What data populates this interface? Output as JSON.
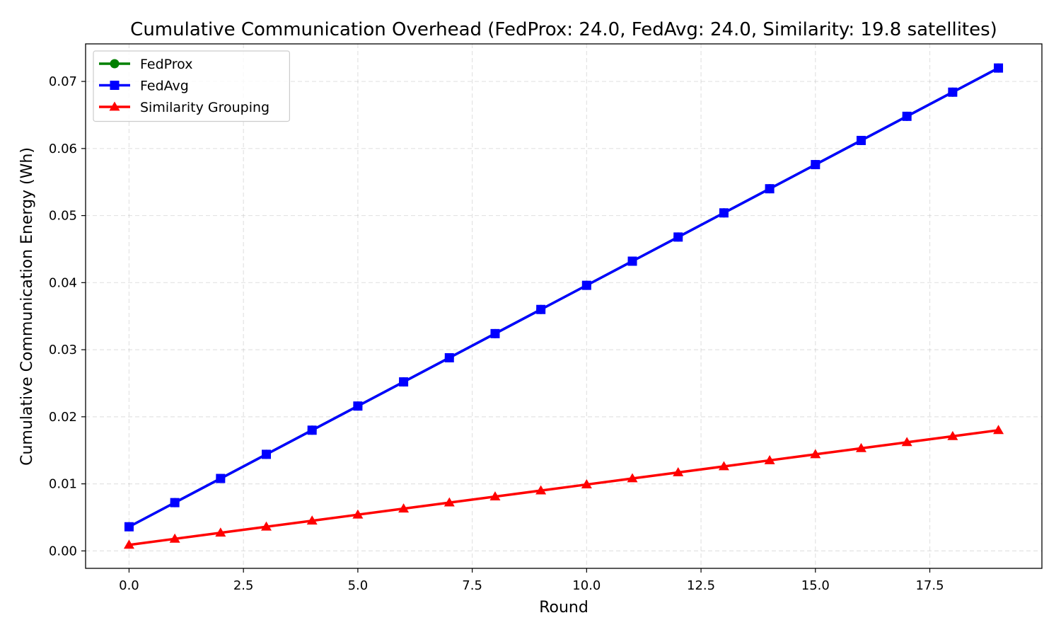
{
  "chart_data": {
    "type": "line",
    "title": "Cumulative Communication Overhead (FedProx: 24.0, FedAvg: 24.0, Similarity: 19.8 satellites)",
    "xlabel": "Round",
    "ylabel": "Cumulative Communication Energy (Wh)",
    "xlim": [
      -0.95,
      19.95
    ],
    "ylim": [
      -0.0026,
      0.0756
    ],
    "xticks": [
      0.0,
      2.5,
      5.0,
      7.5,
      10.0,
      12.5,
      15.0,
      17.5
    ],
    "xtick_labels": [
      "0.0",
      "2.5",
      "5.0",
      "7.5",
      "10.0",
      "12.5",
      "15.0",
      "17.5"
    ],
    "yticks": [
      0.0,
      0.01,
      0.02,
      0.03,
      0.04,
      0.05,
      0.06,
      0.07
    ],
    "ytick_labels": [
      "0.00",
      "0.01",
      "0.02",
      "0.03",
      "0.04",
      "0.05",
      "0.06",
      "0.07"
    ],
    "grid": true,
    "legend_position": "top-left",
    "x": [
      0,
      1,
      2,
      3,
      4,
      5,
      6,
      7,
      8,
      9,
      10,
      11,
      12,
      13,
      14,
      15,
      16,
      17,
      18,
      19
    ],
    "series": [
      {
        "name": "FedProx",
        "color": "#008000",
        "marker": "circle",
        "values": [
          0.0036,
          0.0072,
          0.0108,
          0.0144,
          0.018,
          0.0216,
          0.0252,
          0.0288,
          0.0324,
          0.036,
          0.0396,
          0.0432,
          0.0468,
          0.0504,
          0.054,
          0.0576,
          0.0612,
          0.0648,
          0.0684,
          0.072
        ]
      },
      {
        "name": "FedAvg",
        "color": "#0000ff",
        "marker": "square",
        "values": [
          0.0036,
          0.0072,
          0.0108,
          0.0144,
          0.018,
          0.0216,
          0.0252,
          0.0288,
          0.0324,
          0.036,
          0.0396,
          0.0432,
          0.0468,
          0.0504,
          0.054,
          0.0576,
          0.0612,
          0.0648,
          0.0684,
          0.072
        ]
      },
      {
        "name": "Similarity Grouping",
        "color": "#ff0000",
        "marker": "triangle",
        "values": [
          0.0009,
          0.0018,
          0.0027,
          0.0036,
          0.0045,
          0.0054,
          0.0063,
          0.0072,
          0.0081,
          0.009,
          0.0099,
          0.0108,
          0.0117,
          0.0126,
          0.0135,
          0.0144,
          0.0153,
          0.0162,
          0.0171,
          0.018
        ]
      }
    ]
  }
}
